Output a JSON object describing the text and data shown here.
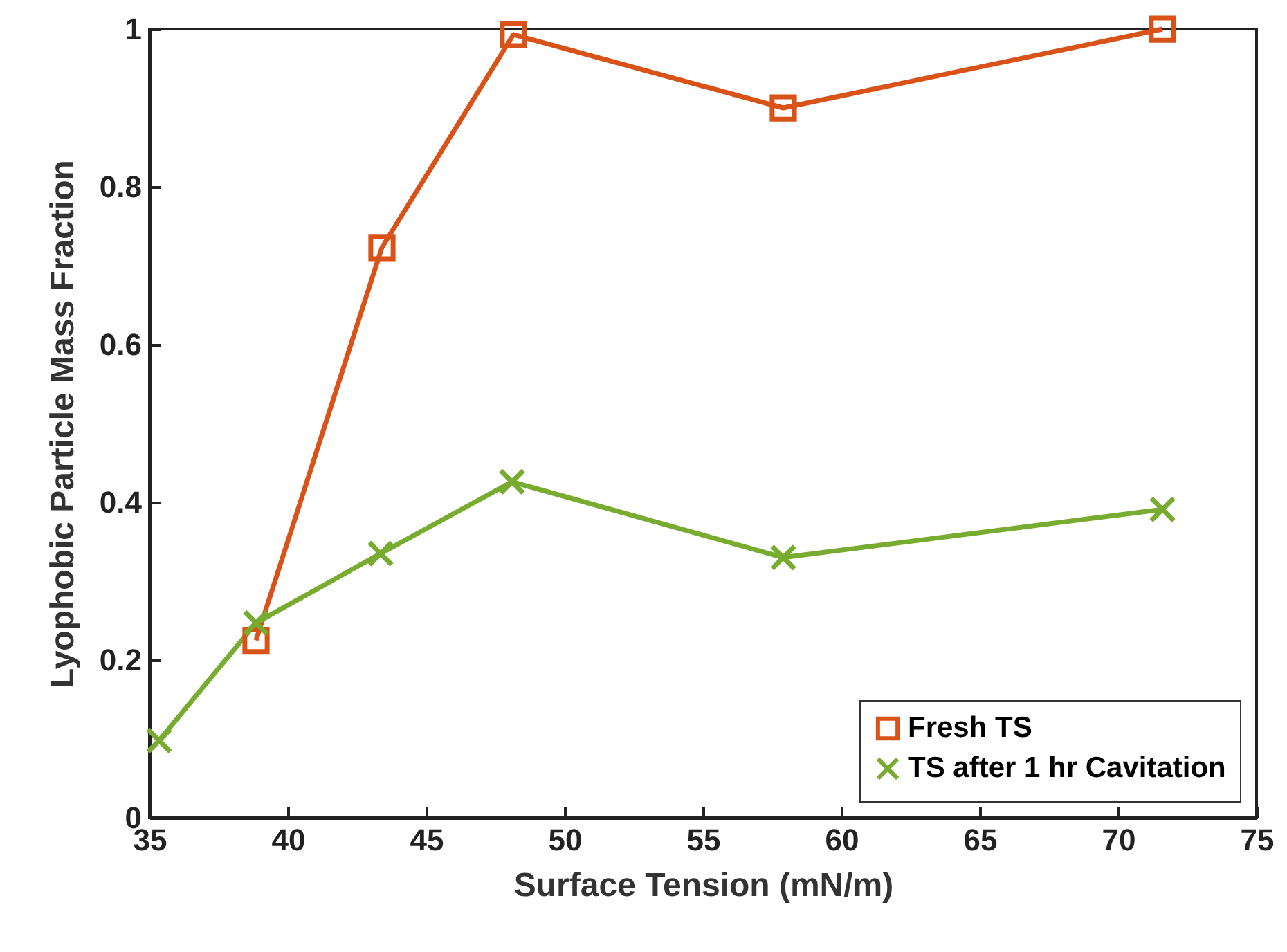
{
  "chart_data": {
    "type": "line",
    "xlabel": "Surface Tension (mN/m)",
    "ylabel": "Lyophobic Particle Mass Fraction",
    "xlim": [
      35,
      75
    ],
    "xticks": [
      35,
      40,
      45,
      50,
      55,
      60,
      65,
      70,
      75
    ],
    "ylim": [
      0,
      1
    ],
    "yticks": [
      0,
      0.2,
      0.4,
      0.6,
      0.8,
      1
    ],
    "legend": "bottom right",
    "grid": false,
    "line_style": "solid",
    "series": [
      {
        "name": "Fresh TS",
        "color": "#d95319",
        "marker": "square",
        "x": [
          38.85,
          43.4,
          48.15,
          57.9,
          71.6
        ],
        "values": [
          0.225,
          0.723,
          0.993,
          0.9,
          1.0
        ]
      },
      {
        "name": "TS after 1 hr Cavitation",
        "color": "#77ac30",
        "marker": "cross",
        "x": [
          35.35,
          38.85,
          43.35,
          48.1,
          57.9,
          71.6
        ],
        "values": [
          0.098,
          0.247,
          0.335,
          0.426,
          0.33,
          0.391
        ]
      }
    ]
  }
}
